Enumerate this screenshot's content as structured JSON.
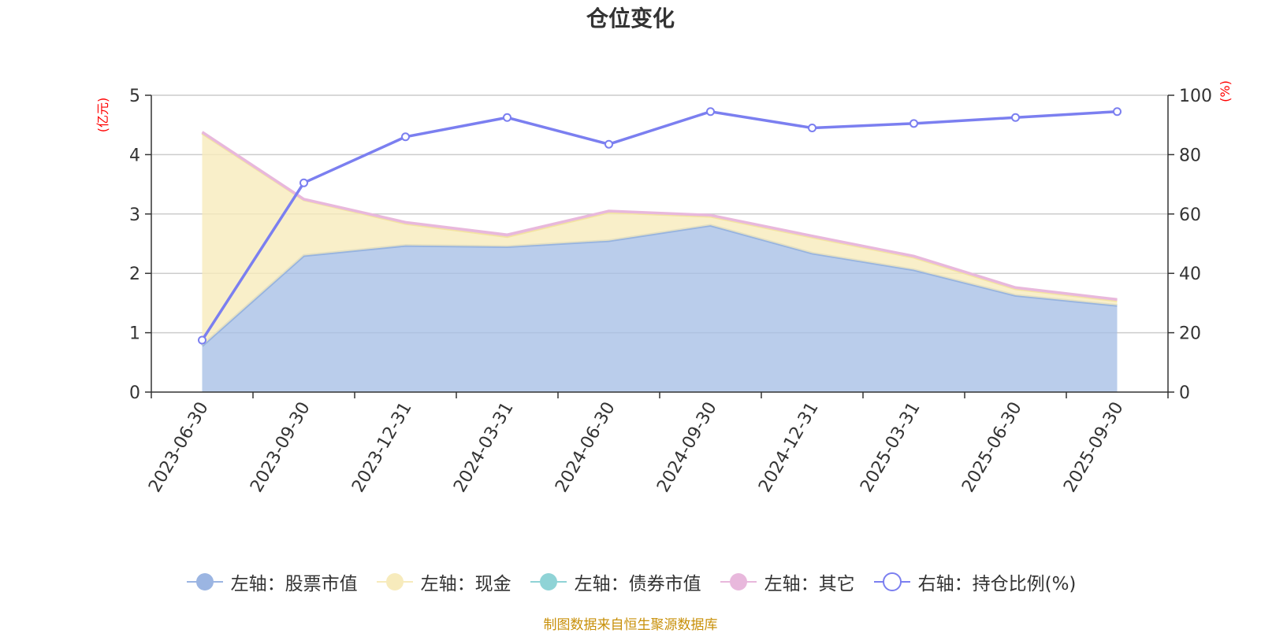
{
  "chart_data": {
    "type": "area",
    "title": "仓位变化",
    "categories": [
      "2023-06-30",
      "2023-09-30",
      "2023-12-31",
      "2024-03-31",
      "2024-06-30",
      "2024-09-30",
      "2024-12-31",
      "2025-03-31",
      "2025-06-30",
      "2025-09-30"
    ],
    "left_axis": {
      "unit": "(亿元)",
      "ylim": [
        0,
        5
      ],
      "ticks": [
        "0",
        "1",
        "2",
        "3",
        "4",
        "5"
      ]
    },
    "right_axis": {
      "unit": "(%)",
      "ylim": [
        0,
        100
      ],
      "ticks": [
        "0",
        "20",
        "40",
        "60",
        "80",
        "100"
      ]
    },
    "stacked_series": [
      {
        "name": "左轴：股票市值",
        "values": [
          0.78,
          2.3,
          2.47,
          2.45,
          2.55,
          2.81,
          2.34,
          2.06,
          1.63,
          1.46
        ],
        "color": "#a6bfe5",
        "line_color": "#96b3df"
      },
      {
        "name": "左轴：现金",
        "values": [
          3.58,
          0.94,
          0.37,
          0.17,
          0.48,
          0.15,
          0.27,
          0.21,
          0.11,
          0.08
        ],
        "color": "#f7ebbc",
        "line_color": "#f3e3a2"
      },
      {
        "name": "左轴：债券市值",
        "values": [
          0,
          0,
          0,
          0,
          0,
          0,
          0,
          0,
          0,
          0
        ],
        "color": "#8fd3d6",
        "line_color": "#8fd3d6"
      },
      {
        "name": "左轴：其它",
        "values": [
          0.02,
          0.01,
          0.02,
          0.03,
          0.02,
          0.02,
          0.02,
          0.02,
          0.02,
          0.02
        ],
        "color": "#e8b8dc",
        "line_color": "#e8b8dc"
      }
    ],
    "line_series": {
      "name": "右轴：持仓比例(%)",
      "values": [
        17.5,
        70.5,
        86,
        92.5,
        83.5,
        94.5,
        89,
        90.5,
        92.5,
        94.5
      ],
      "color": "#7b7ff0"
    },
    "grid": true,
    "legend_position": "bottom"
  },
  "source_note": "制图数据来自恒生聚源数据库"
}
